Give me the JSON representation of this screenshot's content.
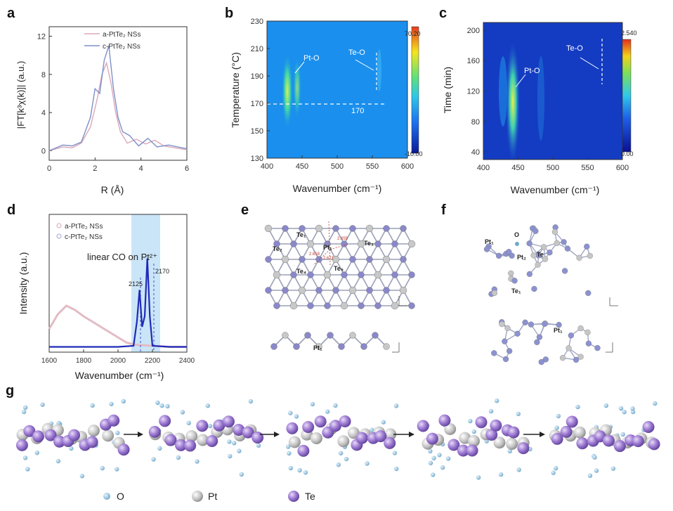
{
  "labels": {
    "a": "a",
    "b": "b",
    "c": "c",
    "d": "d",
    "e": "e",
    "f": "f",
    "g": "g"
  },
  "panel_a": {
    "ylabel": "|FT[k³χ(k)]| (a.u.)",
    "xlabel": "R (Å)",
    "xticks": [
      "0",
      "2",
      "4",
      "6"
    ],
    "yticks": [
      "0",
      "4",
      "8",
      "12"
    ],
    "legend": [
      "a-PtTe₂ NSs",
      "c-PtTe₂ NSs"
    ]
  },
  "panel_b": {
    "ylabel": "Temperature (°C)",
    "xlabel": "Wavenumber (cm⁻¹)",
    "xticks": [
      "400",
      "450",
      "500",
      "550",
      "600"
    ],
    "yticks": [
      "130",
      "150",
      "170",
      "190",
      "210",
      "230"
    ],
    "cbar_max": "70.20",
    "cbar_min": "-10.00",
    "ann_pto": "Pt-O",
    "ann_teo": "Te-O",
    "ann_170": "170"
  },
  "panel_c": {
    "ylabel": "Time (min)",
    "xlabel": "Wavenumber (cm⁻¹)",
    "xticks": [
      "400",
      "450",
      "500",
      "550",
      "600"
    ],
    "yticks": [
      "40",
      "80",
      "120",
      "160",
      "200"
    ],
    "cbar_max": "2.540",
    "cbar_min": "0.00",
    "ann_pto": "Pt-O",
    "ann_teo": "Te-O"
  },
  "panel_d": {
    "ylabel": "Intensity (a.u.)",
    "xlabel": "Wavenumber (cm⁻¹)",
    "xticks": [
      "1600",
      "1800",
      "2000",
      "2200",
      "2400"
    ],
    "legend": [
      "a-PtTe₂ NSs",
      "c-PtTe₂ NSs"
    ],
    "annotation": "linear CO on Pt²⁺",
    "peak1": "2125",
    "peak2": "2170"
  },
  "panel_e": {
    "atoms": [
      "Te₁",
      "Te₂",
      "Te₃",
      "Te₄",
      "Te₅",
      "Pt₁",
      "Pt₁"
    ],
    "bonds": [
      "2.659",
      "2.618",
      "2.671"
    ]
  },
  "panel_f": {
    "atoms": [
      "Pt₁",
      "O",
      "Pt₂",
      "Te",
      "Te₁",
      "Pt₁"
    ]
  },
  "panel_g": {
    "legend": [
      "O",
      "Pt",
      "Te"
    ]
  },
  "chart_data": [
    {
      "type": "line",
      "id": "a",
      "xlabel": "R (Å)",
      "ylabel": "|FT[k³χ(k)]| (a.u.)",
      "xlim": [
        0,
        6
      ],
      "ylim": [
        -1,
        13
      ],
      "series": [
        {
          "name": "a-PtTe₂ NSs",
          "x": [
            0,
            0.6,
            1.0,
            1.4,
            1.8,
            2.1,
            2.3,
            2.5,
            2.7,
            2.9,
            3.1,
            3.4,
            3.8,
            4.2,
            4.6,
            5.0,
            5.5,
            6.0
          ],
          "y": [
            0,
            0.4,
            0.3,
            0.8,
            2.5,
            5.5,
            8.0,
            9.2,
            7.0,
            4.0,
            2.0,
            0.8,
            1.2,
            0.7,
            1.1,
            0.5,
            0.3,
            0.1
          ]
        },
        {
          "name": "c-PtTe₂ NSs",
          "x": [
            0,
            0.6,
            1.0,
            1.4,
            1.8,
            2.0,
            2.2,
            2.4,
            2.6,
            2.8,
            3.0,
            3.2,
            3.5,
            3.9,
            4.3,
            4.7,
            5.2,
            6.0
          ],
          "y": [
            0,
            0.6,
            0.5,
            0.9,
            3.5,
            6.5,
            6.0,
            9.5,
            11.0,
            6.5,
            3.5,
            2.0,
            1.6,
            0.5,
            1.3,
            0.4,
            0.6,
            0.2
          ]
        }
      ]
    },
    {
      "type": "heatmap",
      "id": "b",
      "xlabel": "Wavenumber (cm⁻¹)",
      "ylabel": "Temperature (°C)",
      "xlim": [
        400,
        600
      ],
      "ylim": [
        130,
        230
      ],
      "zlim": [
        -10.0,
        70.2
      ]
    },
    {
      "type": "heatmap",
      "id": "c",
      "xlabel": "Wavenumber (cm⁻¹)",
      "ylabel": "Time (min)",
      "xlim": [
        400,
        600
      ],
      "ylim": [
        30,
        210
      ],
      "zlim": [
        0.0,
        2.54
      ]
    },
    {
      "type": "line",
      "id": "d",
      "xlabel": "Wavenumber (cm⁻¹)",
      "ylabel": "Intensity (a.u.)",
      "xlim": [
        1600,
        2400
      ],
      "series": [
        {
          "name": "a-PtTe₂ NSs",
          "x": [
            1600,
            1650,
            1700,
            1750,
            1800,
            1900,
            2000,
            2050,
            2100,
            2200,
            2300,
            2400
          ],
          "y": [
            0.18,
            0.32,
            0.4,
            0.36,
            0.3,
            0.2,
            0.1,
            0.05,
            0.03,
            0.02,
            0.01,
            0.01
          ]
        },
        {
          "name": "c-PtTe₂ NSs",
          "x": [
            1600,
            1800,
            2000,
            2090,
            2110,
            2125,
            2140,
            2155,
            2170,
            2185,
            2200,
            2300,
            2400
          ],
          "y": [
            0.01,
            0.01,
            0.01,
            0.02,
            0.25,
            0.55,
            0.2,
            0.3,
            0.85,
            0.3,
            0.02,
            0.01,
            0.01
          ]
        }
      ]
    }
  ]
}
